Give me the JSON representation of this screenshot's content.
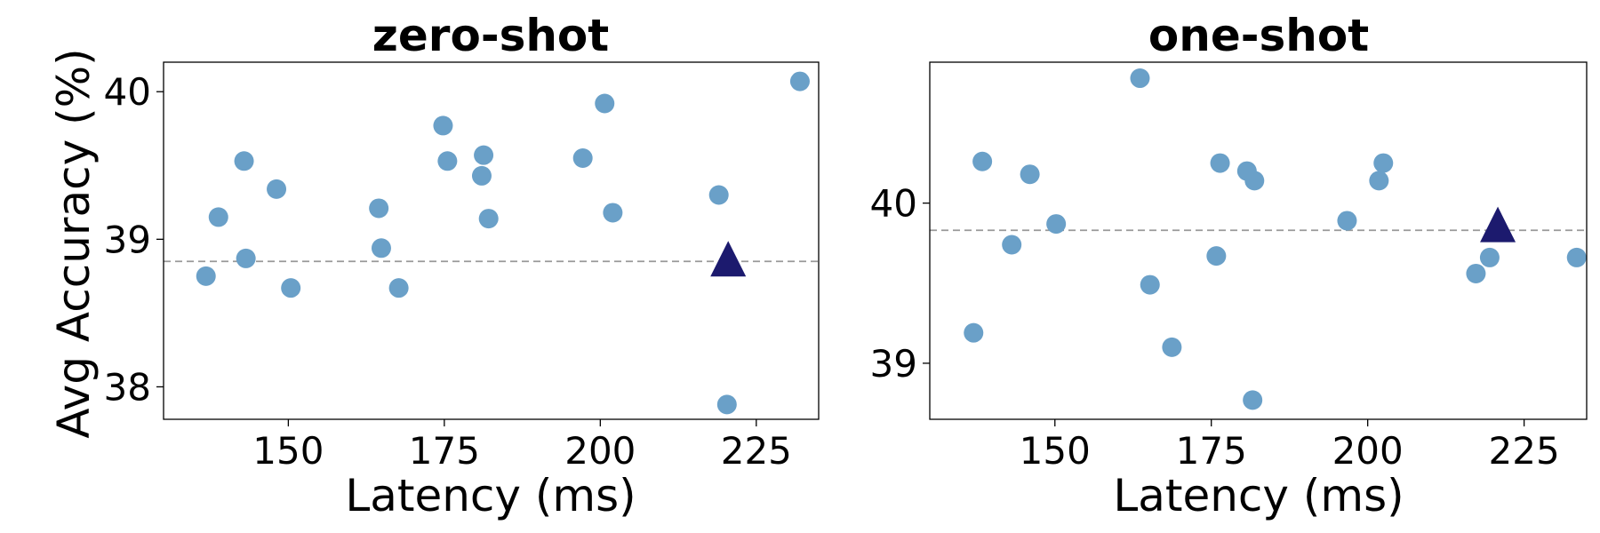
{
  "chart_data": [
    {
      "type": "scatter",
      "title": "zero-shot",
      "xlabel": "Latency (ms)",
      "ylabel": "Avg Accuracy (%)",
      "xlim": [
        130,
        235
      ],
      "ylim": [
        37.78,
        40.2
      ],
      "xticks": [
        150,
        175,
        200,
        225
      ],
      "yticks": [
        38,
        39,
        40
      ],
      "xtick_labels": [
        "150",
        "175",
        "200",
        "225"
      ],
      "ytick_labels": [
        "38",
        "39",
        "40"
      ],
      "baseline_y": 38.85,
      "point_color": "#6aa0c8",
      "marker_color": "#1c1a6e",
      "points": [
        {
          "x": 136.8,
          "y": 38.75
        },
        {
          "x": 138.8,
          "y": 39.15
        },
        {
          "x": 142.9,
          "y": 39.53
        },
        {
          "x": 143.2,
          "y": 38.87
        },
        {
          "x": 148.1,
          "y": 39.34
        },
        {
          "x": 150.4,
          "y": 38.67
        },
        {
          "x": 164.5,
          "y": 39.21
        },
        {
          "x": 164.9,
          "y": 38.94
        },
        {
          "x": 167.7,
          "y": 38.67
        },
        {
          "x": 174.8,
          "y": 39.77
        },
        {
          "x": 175.5,
          "y": 39.53
        },
        {
          "x": 181.0,
          "y": 39.43
        },
        {
          "x": 181.3,
          "y": 39.57
        },
        {
          "x": 182.1,
          "y": 39.14
        },
        {
          "x": 197.2,
          "y": 39.55
        },
        {
          "x": 200.7,
          "y": 39.92
        },
        {
          "x": 202.0,
          "y": 39.18
        },
        {
          "x": 219.0,
          "y": 39.3
        },
        {
          "x": 220.3,
          "y": 37.88
        },
        {
          "x": 232.0,
          "y": 40.07
        }
      ],
      "marker": {
        "x": 220.5,
        "y": 38.85
      }
    },
    {
      "type": "scatter",
      "title": "one-shot",
      "xlabel": "Latency (ms)",
      "ylabel": "",
      "xlim": [
        130,
        235
      ],
      "ylim": [
        38.65,
        40.88
      ],
      "xticks": [
        150,
        175,
        200,
        225
      ],
      "yticks": [
        39,
        40
      ],
      "xtick_labels": [
        "150",
        "175",
        "200",
        "225"
      ],
      "ytick_labels": [
        "39",
        "40"
      ],
      "baseline_y": 39.83,
      "point_color": "#6aa0c8",
      "marker_color": "#1c1a6e",
      "points": [
        {
          "x": 137.0,
          "y": 39.19
        },
        {
          "x": 138.4,
          "y": 40.26
        },
        {
          "x": 143.1,
          "y": 39.74
        },
        {
          "x": 146.0,
          "y": 40.18
        },
        {
          "x": 150.2,
          "y": 39.87
        },
        {
          "x": 163.6,
          "y": 40.78
        },
        {
          "x": 165.2,
          "y": 39.49
        },
        {
          "x": 168.7,
          "y": 39.1
        },
        {
          "x": 175.8,
          "y": 39.67
        },
        {
          "x": 176.4,
          "y": 40.25
        },
        {
          "x": 180.7,
          "y": 40.2
        },
        {
          "x": 181.6,
          "y": 38.77
        },
        {
          "x": 181.9,
          "y": 40.14
        },
        {
          "x": 196.7,
          "y": 39.89
        },
        {
          "x": 201.8,
          "y": 40.14
        },
        {
          "x": 202.5,
          "y": 40.25
        },
        {
          "x": 217.3,
          "y": 39.56
        },
        {
          "x": 219.5,
          "y": 39.66
        },
        {
          "x": 233.4,
          "y": 39.66
        }
      ],
      "marker": {
        "x": 220.8,
        "y": 39.85
      }
    }
  ]
}
